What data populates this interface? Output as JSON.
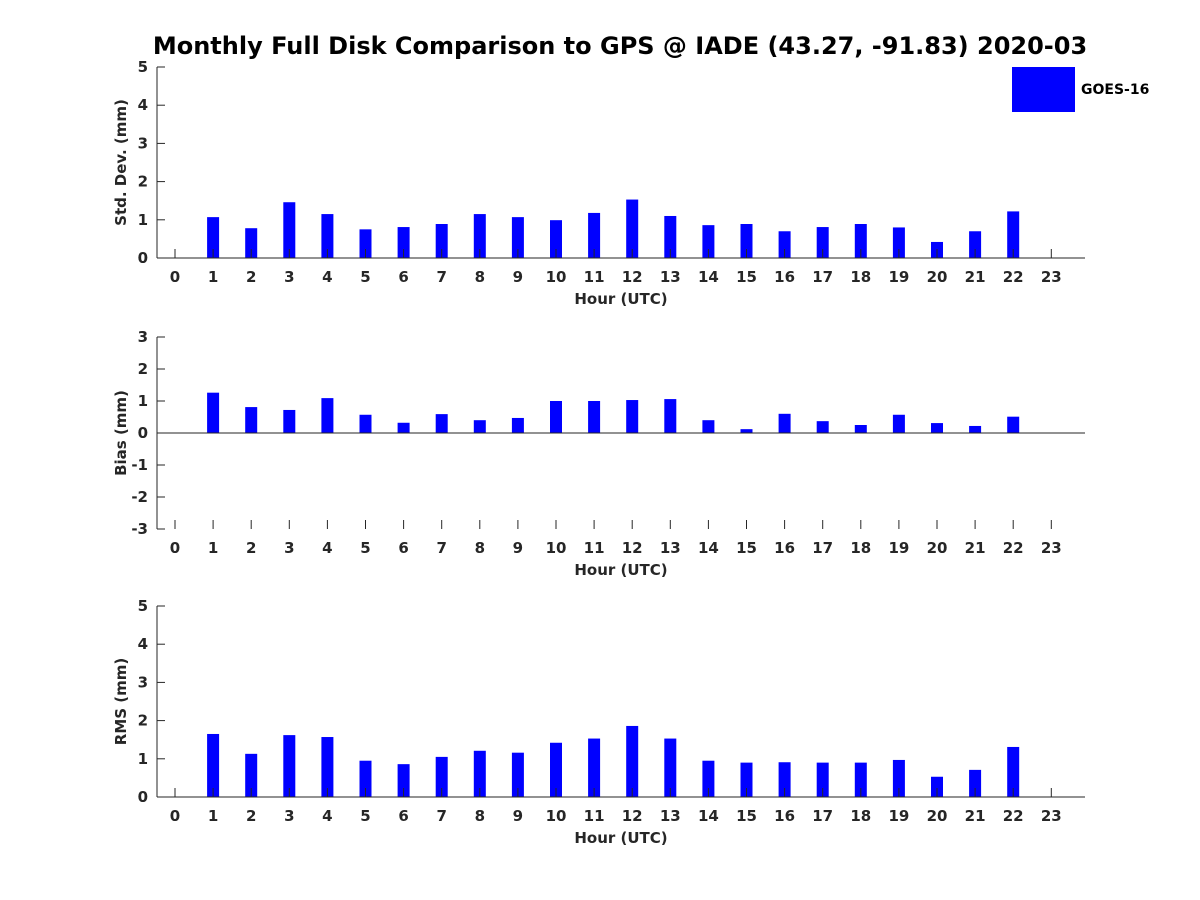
{
  "chart_data": {
    "title": "Monthly Full Disk Comparison to GPS @ IADE (43.27, -91.83) 2020-03",
    "legend": {
      "label": "GOES-16",
      "color": "#0000ff",
      "placement": "top-right"
    },
    "panels": [
      {
        "type": "bar",
        "ylabel": "Std. Dev. (mm)",
        "xlabel": "Hour (UTC)",
        "ylim": [
          0,
          5
        ],
        "yticks": [
          0,
          1,
          2,
          3,
          4,
          5
        ],
        "categories": [
          "0",
          "1",
          "2",
          "3",
          "4",
          "5",
          "6",
          "7",
          "8",
          "9",
          "10",
          "11",
          "12",
          "13",
          "14",
          "15",
          "16",
          "17",
          "18",
          "19",
          "20",
          "21",
          "22",
          "23"
        ],
        "values": [
          null,
          1.07,
          0.78,
          1.46,
          1.15,
          0.75,
          0.81,
          0.89,
          1.15,
          1.07,
          0.99,
          1.18,
          1.53,
          1.1,
          0.86,
          0.89,
          0.7,
          0.81,
          0.89,
          0.8,
          0.42,
          0.7,
          1.22,
          null
        ]
      },
      {
        "type": "bar",
        "ylabel": "Bias (mm)",
        "xlabel": "Hour (UTC)",
        "ylim": [
          -3,
          3
        ],
        "yticks": [
          -3,
          -2,
          -1,
          0,
          1,
          2,
          3
        ],
        "categories": [
          "0",
          "1",
          "2",
          "3",
          "4",
          "5",
          "6",
          "7",
          "8",
          "9",
          "10",
          "11",
          "12",
          "13",
          "14",
          "15",
          "16",
          "17",
          "18",
          "19",
          "20",
          "21",
          "22",
          "23"
        ],
        "values": [
          null,
          1.26,
          0.81,
          0.72,
          1.09,
          0.57,
          0.32,
          0.59,
          0.4,
          0.47,
          1.0,
          1.0,
          1.03,
          1.06,
          0.4,
          0.12,
          0.6,
          0.37,
          0.25,
          0.57,
          0.31,
          0.22,
          0.51,
          null
        ]
      },
      {
        "type": "bar",
        "ylabel": "RMS (mm)",
        "xlabel": "Hour (UTC)",
        "ylim": [
          0,
          5
        ],
        "yticks": [
          0,
          1,
          2,
          3,
          4,
          5
        ],
        "categories": [
          "0",
          "1",
          "2",
          "3",
          "4",
          "5",
          "6",
          "7",
          "8",
          "9",
          "10",
          "11",
          "12",
          "13",
          "14",
          "15",
          "16",
          "17",
          "18",
          "19",
          "20",
          "21",
          "22",
          "23"
        ],
        "values": [
          null,
          1.65,
          1.13,
          1.62,
          1.57,
          0.95,
          0.86,
          1.05,
          1.21,
          1.16,
          1.42,
          1.53,
          1.86,
          1.53,
          0.95,
          0.9,
          0.91,
          0.9,
          0.9,
          0.97,
          0.53,
          0.71,
          1.31,
          null
        ]
      }
    ]
  }
}
